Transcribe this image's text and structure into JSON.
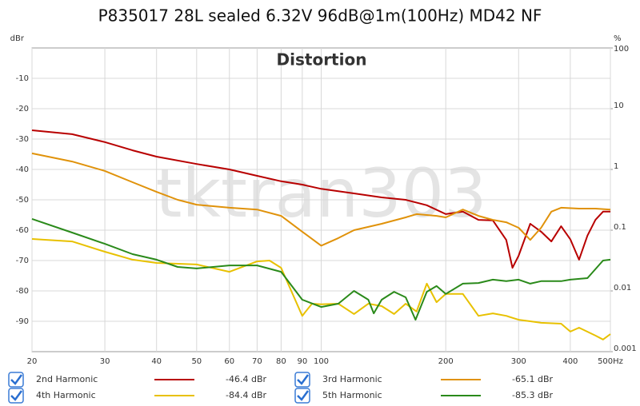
{
  "chart_data": {
    "type": "line",
    "title": "P835017 28L sealed 6.32V 96dB@1m(100Hz) MD42 NF",
    "subtitle": "Distortion",
    "watermark": "tktran303",
    "ylabel": "dBr",
    "y2label": "%",
    "xscale": "log",
    "y2scale": "log",
    "grid": true,
    "xlim": [
      20,
      500
    ],
    "xticks": [
      20,
      30,
      40,
      50,
      60,
      70,
      80,
      90,
      100,
      200,
      300,
      400,
      {
        "value": 500,
        "label": "500Hz"
      }
    ],
    "ylim": [
      -100,
      0
    ],
    "yticks": [
      -10,
      -20,
      -30,
      -40,
      -50,
      -60,
      -70,
      -80,
      -90
    ],
    "y2lim": [
      0.001,
      100
    ],
    "y2ticks": [
      100,
      10,
      1,
      0.1,
      0.01,
      0.001
    ],
    "series": [
      {
        "name": "2nd Harmonic",
        "color": "#b80000",
        "legend_value": "-46.4 dBr",
        "x": [
          20,
          25,
          30,
          35,
          40,
          50,
          60,
          70,
          80,
          90,
          100,
          120,
          140,
          160,
          180,
          200,
          220,
          240,
          260,
          280,
          290,
          300,
          320,
          340,
          360,
          380,
          400,
          420,
          440,
          460,
          480,
          500
        ],
        "values": [
          -27.1,
          -28.4,
          -31,
          -33.7,
          -35.8,
          -38.2,
          -40,
          -42.1,
          -43.9,
          -45,
          -46.4,
          -47.9,
          -49.2,
          -50,
          -51.8,
          -54.7,
          -53.9,
          -56.6,
          -56.8,
          -63.2,
          -72.4,
          -68.4,
          -57.9,
          -60.5,
          -63.7,
          -58.7,
          -63,
          -69.7,
          -61.8,
          -56.6,
          -53.9,
          -53.9
        ]
      },
      {
        "name": "3rd Harmonic",
        "color": "#e0920a",
        "legend_value": "-65.1 dBr",
        "x": [
          20,
          25,
          30,
          35,
          40,
          45,
          50,
          60,
          70,
          80,
          90,
          100,
          110,
          120,
          140,
          160,
          170,
          190,
          200,
          220,
          240,
          260,
          280,
          300,
          320,
          340,
          360,
          380,
          420,
          460,
          500
        ],
        "values": [
          -34.7,
          -37.4,
          -40.5,
          -44.2,
          -47.4,
          -50,
          -51.6,
          -52.6,
          -53.2,
          -55.3,
          -60.5,
          -65.1,
          -62.6,
          -60,
          -57.9,
          -55.8,
          -54.7,
          -55.3,
          -55.8,
          -53.2,
          -55.3,
          -56.6,
          -57.4,
          -59.2,
          -63.2,
          -59.2,
          -53.9,
          -52.6,
          -52.9,
          -52.9,
          -53.2
        ]
      },
      {
        "name": "4th Harmonic",
        "color": "#e8c100",
        "legend_value": "-84.4 dBr",
        "x": [
          20,
          25,
          30,
          35,
          40,
          50,
          60,
          70,
          75,
          80,
          90,
          95,
          100,
          110,
          120,
          130,
          140,
          150,
          160,
          170,
          180,
          190,
          200,
          220,
          240,
          260,
          280,
          300,
          320,
          340,
          380,
          400,
          420,
          460,
          480,
          500
        ],
        "values": [
          -62.9,
          -63.7,
          -67.1,
          -69.7,
          -70.8,
          -71.3,
          -73.7,
          -70.3,
          -70,
          -72.4,
          -88.2,
          -84.2,
          -84.4,
          -84.2,
          -87.6,
          -84.2,
          -85,
          -87.6,
          -84.2,
          -86.8,
          -77.6,
          -83.7,
          -81,
          -81,
          -88.2,
          -87.4,
          -88.2,
          -89.5,
          -90,
          -90.5,
          -90.8,
          -93.4,
          -92.1,
          -94.7,
          -96,
          -94.2
        ]
      },
      {
        "name": "5th Harmonic",
        "color": "#2a8a1a",
        "legend_value": "-85.3 dBr",
        "x": [
          20,
          25,
          30,
          35,
          40,
          45,
          50,
          60,
          70,
          80,
          90,
          100,
          110,
          120,
          130,
          134,
          140,
          150,
          160,
          169,
          180,
          190,
          200,
          220,
          240,
          260,
          280,
          300,
          320,
          340,
          380,
          400,
          440,
          480,
          500
        ],
        "values": [
          -56.3,
          -60.8,
          -64.5,
          -67.9,
          -69.7,
          -72.1,
          -72.6,
          -71.6,
          -71.6,
          -73.7,
          -82.9,
          -85.3,
          -84.2,
          -80,
          -82.9,
          -87.4,
          -82.9,
          -80.3,
          -82.1,
          -89.5,
          -80.3,
          -78.4,
          -81,
          -77.6,
          -77.4,
          -76.3,
          -76.8,
          -76.3,
          -77.6,
          -76.8,
          -76.8,
          -76.3,
          -75.8,
          -70,
          -69.7
        ]
      }
    ]
  }
}
